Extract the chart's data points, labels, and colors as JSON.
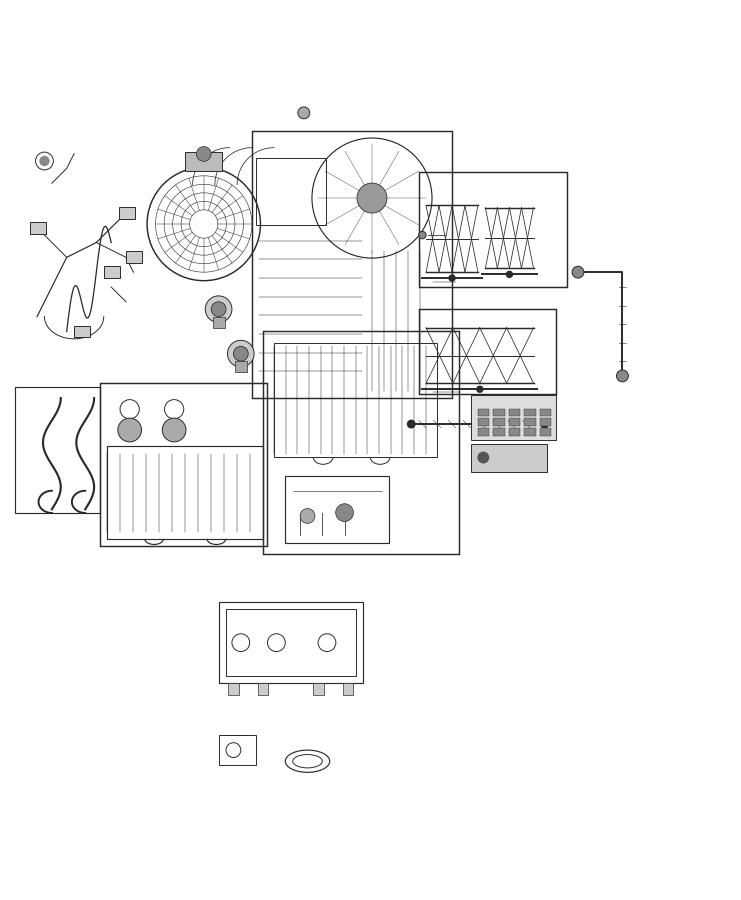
{
  "bg_color": "#ffffff",
  "line_color": "#2a2a2a",
  "fig_width": 7.41,
  "fig_height": 9.0
}
